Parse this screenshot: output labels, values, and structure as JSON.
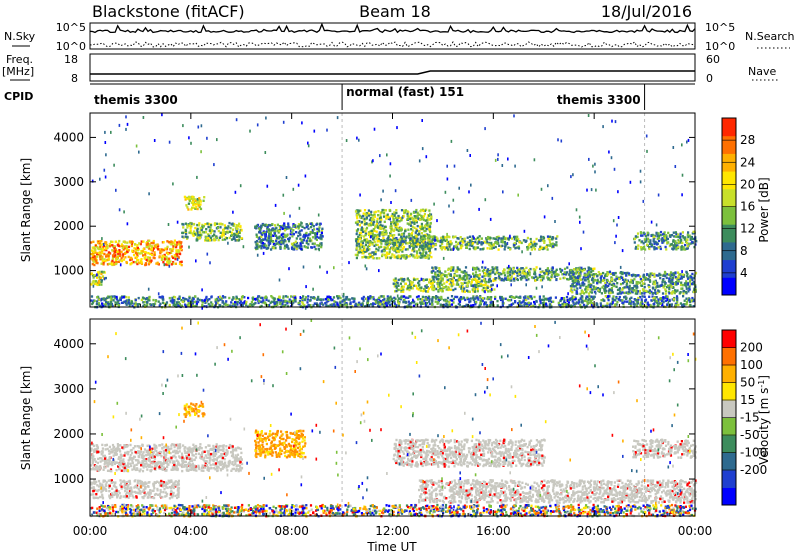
{
  "header": {
    "station": "Blackstone (fitACF)",
    "beam": "Beam 18",
    "date": "18/Jul/2016"
  },
  "summary_panels": {
    "nsky_label": "N.Sky",
    "nsky_ticks": [
      "10^5",
      "10^0"
    ],
    "nsearch_label": "N.Search",
    "nsearch_ticks": [
      "10^5",
      "10^0"
    ],
    "freq_label": "Freq.",
    "freq_unit": "[MHz]",
    "freq_ticks": [
      18,
      8
    ],
    "nave_label": "Nave",
    "nave_ticks": [
      60,
      0
    ],
    "cpid_label": "CPID",
    "cpid_segments": [
      {
        "name": "themis 3300",
        "start_h": 0,
        "end_h": 10
      },
      {
        "name": "normal (fast) 151",
        "start_h": 10,
        "end_h": 22
      },
      {
        "name": "themis 3300",
        "start_h": 22,
        "end_h": 24
      }
    ]
  },
  "chart_data": [
    {
      "type": "heatmap",
      "name": "power",
      "ylabel": "Slant Range [km]",
      "xlim_hours": [
        0,
        24
      ],
      "ylim_km": [
        180,
        4550
      ],
      "y_ticks": [
        1000,
        2000,
        3000,
        4000
      ],
      "colorbar": {
        "label": "Power [dB]",
        "ticks": [
          4,
          8,
          12,
          16,
          20,
          24,
          28
        ],
        "range": [
          0,
          32
        ],
        "colors": [
          "#0000ff",
          "#1f3fd0",
          "#2e6a8f",
          "#3c8c5c",
          "#7cc03c",
          "#c8e02a",
          "#ffe600",
          "#ffb000",
          "#ff7000",
          "#ff2800"
        ]
      },
      "regions": [
        {
          "t0": 0.0,
          "t1": 3.6,
          "r0": 1150,
          "r1": 1700,
          "level": 0.75
        },
        {
          "t0": 3.6,
          "t1": 6.0,
          "r0": 1700,
          "r1": 2100,
          "level": 0.45
        },
        {
          "t0": 6.5,
          "t1": 9.2,
          "r0": 1500,
          "r1": 2100,
          "level": 0.3
        },
        {
          "t0": 3.7,
          "t1": 4.5,
          "r0": 2400,
          "r1": 2700,
          "level": 0.55
        },
        {
          "t0": 0.0,
          "t1": 0.6,
          "r0": 700,
          "r1": 1000,
          "level": 0.5
        },
        {
          "t0": 10.5,
          "t1": 13.5,
          "r0": 1300,
          "r1": 2400,
          "level": 0.45
        },
        {
          "t0": 12.0,
          "t1": 18.5,
          "r0": 1500,
          "r1": 1800,
          "level": 0.4
        },
        {
          "t0": 13.5,
          "t1": 20.0,
          "r0": 800,
          "r1": 1100,
          "level": 0.4
        },
        {
          "t0": 12.0,
          "t1": 16.0,
          "r0": 550,
          "r1": 850,
          "level": 0.45
        },
        {
          "t0": 19.0,
          "t1": 24.0,
          "r0": 500,
          "r1": 1000,
          "level": 0.35
        },
        {
          "t0": 21.5,
          "t1": 24.0,
          "r0": 1500,
          "r1": 1900,
          "level": 0.35
        },
        {
          "t0": 0.0,
          "t1": 24.0,
          "r0": 200,
          "r1": 450,
          "level": 0.3
        }
      ]
    },
    {
      "type": "heatmap",
      "name": "velocity",
      "xlabel": "Time UT",
      "ylabel": "Slant Range [km]",
      "xlim_hours": [
        0,
        24
      ],
      "x_ticks": [
        "00:00",
        "04:00",
        "08:00",
        "12:00",
        "16:00",
        "20:00",
        "00:00"
      ],
      "ylim_km": [
        180,
        4550
      ],
      "y_ticks": [
        1000,
        2000,
        3000,
        4000
      ],
      "colorbar": {
        "label": "Velocity",
        "unit": "[m s",
        "unit_exp": "-1",
        "unit_close": "]",
        "ticks": [
          200,
          100,
          50,
          15,
          -15,
          -50,
          -100,
          -200
        ],
        "colors": [
          "#0000ff",
          "#1f3fd0",
          "#2e6a8f",
          "#3c8c5c",
          "#7cc03c",
          "#c8c8c0",
          "#ffe600",
          "#ffb000",
          "#ff7000",
          "#ff0000"
        ]
      },
      "regions": [
        {
          "t0": 0.0,
          "t1": 6.0,
          "r0": 1200,
          "r1": 1800,
          "kind": "ground"
        },
        {
          "t0": 0.0,
          "t1": 3.5,
          "r0": 600,
          "r1": 1000,
          "kind": "ground"
        },
        {
          "t0": 3.7,
          "t1": 4.5,
          "r0": 2400,
          "r1": 2700,
          "kind": "neg"
        },
        {
          "t0": 6.5,
          "t1": 8.5,
          "r0": 1500,
          "r1": 2100,
          "kind": "neg"
        },
        {
          "t0": 12.0,
          "t1": 18.0,
          "r0": 1300,
          "r1": 1900,
          "kind": "ground"
        },
        {
          "t0": 13.0,
          "t1": 24.0,
          "r0": 500,
          "r1": 1000,
          "kind": "ground"
        },
        {
          "t0": 21.5,
          "t1": 24.0,
          "r0": 1500,
          "r1": 1900,
          "kind": "ground"
        },
        {
          "t0": 0.0,
          "t1": 24.0,
          "r0": 200,
          "r1": 450,
          "kind": "mixed"
        }
      ]
    }
  ]
}
